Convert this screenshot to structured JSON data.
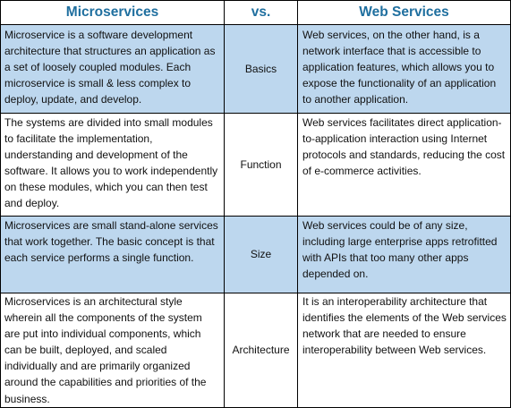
{
  "header": {
    "left": "Microservices",
    "middle": "vs.",
    "right": "Web Services"
  },
  "colors": {
    "header_text": "#1f6f9f",
    "row_shade": "#bdd7ee",
    "border": "#000000"
  },
  "rows": [
    {
      "criterion": "Basics",
      "microservices": "Microservice is a software development architecture that structures an application as a set of loosely coupled modules. Each microservice is small & less complex to deploy, update, and develop.",
      "web_services": "Web services, on the other hand, is a network interface that is accessible to application features, which allows you to expose the functionality of an application to another application."
    },
    {
      "criterion": "Function",
      "microservices": "The systems are divided into small modules to facilitate the implementation, understanding and development of the software. It allows you to work independently on these modules, which you can then test and deploy.",
      "web_services": "Web services facilitates direct application-to-application interaction using Internet protocols and standards, reducing the cost of e-commerce activities."
    },
    {
      "criterion": "Size",
      "microservices": "Microservices are small stand-alone services that work together. The basic concept is that each service performs a single function.",
      "web_services": "Web services could be of any size, including large enterprise apps retrofitted with APIs that too many other apps depended on."
    },
    {
      "criterion": "Architecture",
      "microservices": "Microservices is an architectural style wherein all the components of the system are put into individual components, which can be built, deployed, and scaled individually and are primarily organized around the capabilities and priorities of the business.",
      "web_services": "It is an interoperability architecture that identifies the elements of the Web services network that are needed to ensure interoperability between Web services."
    }
  ]
}
